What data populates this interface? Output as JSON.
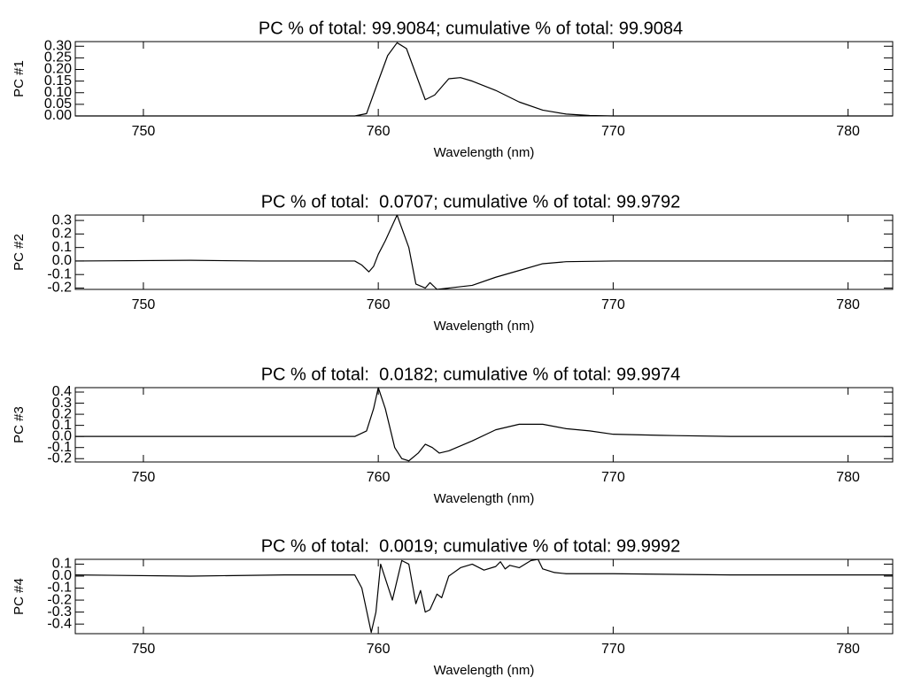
{
  "chart_data": [
    {
      "type": "line",
      "title": "PC % of total: 99.9084; cumulative % of total: 99.9084",
      "ylabel": "PC #1",
      "xlabel": "Wavelength (nm)",
      "color": "#000000",
      "xlim": [
        747.1,
        781.9
      ],
      "xticks": [
        750,
        760,
        770,
        780
      ],
      "ylim": [
        0,
        0.32
      ],
      "yticks": [
        {
          "value": 0,
          "label": "0.00"
        },
        0.05,
        {
          "value": 0.1,
          "label": "0.10"
        },
        0.15,
        {
          "value": 0.2,
          "label": "0.20"
        },
        0.25,
        {
          "value": 0.3,
          "label": "0.30"
        }
      ],
      "x": [
        747.1,
        755,
        759,
        759.5,
        760,
        760.4,
        760.8,
        761.2,
        761.6,
        762,
        762.4,
        763,
        763.5,
        764,
        765,
        766,
        767,
        768,
        769,
        770,
        781.9
      ],
      "values": [
        0,
        0,
        0,
        0.01,
        0.15,
        0.26,
        0.315,
        0.29,
        0.18,
        0.07,
        0.09,
        0.16,
        0.165,
        0.15,
        0.11,
        0.06,
        0.025,
        0.008,
        0.002,
        0,
        0
      ]
    },
    {
      "type": "line",
      "title": "PC % of total:  0.0707; cumulative % of total: 99.9792",
      "ylabel": "PC #2",
      "xlabel": "Wavelength (nm)",
      "color": "#000000",
      "xlim": [
        747.1,
        781.9
      ],
      "xticks": [
        750,
        760,
        770,
        780
      ],
      "ylim": [
        -0.21,
        0.34
      ],
      "yticks": [
        -0.2,
        -0.1,
        {
          "value": 0,
          "label": "0.0"
        },
        0.1,
        0.2,
        0.3
      ],
      "x": [
        747.1,
        752,
        755,
        759,
        759.3,
        759.6,
        759.8,
        760,
        760.3,
        760.8,
        761.3,
        761.6,
        762,
        762.2,
        762.5,
        763,
        764,
        765,
        766,
        767,
        768,
        770,
        781.9
      ],
      "values": [
        0,
        0.005,
        0,
        0,
        -0.03,
        -0.08,
        -0.04,
        0.05,
        0.15,
        0.34,
        0.1,
        -0.17,
        -0.2,
        -0.16,
        -0.21,
        -0.2,
        -0.18,
        -0.12,
        -0.07,
        -0.02,
        -0.005,
        0,
        0
      ]
    },
    {
      "type": "line",
      "title": "PC % of total:  0.0182; cumulative % of total: 99.9974",
      "ylabel": "PC #3",
      "xlabel": "Wavelength (nm)",
      "color": "#000000",
      "xlim": [
        747.1,
        781.9
      ],
      "xticks": [
        750,
        760,
        770,
        780
      ],
      "ylim": [
        -0.23,
        0.44
      ],
      "yticks": [
        -0.2,
        -0.1,
        {
          "value": 0,
          "label": "0.0"
        },
        0.1,
        0.2,
        0.3,
        0.4
      ],
      "x": [
        747.1,
        759,
        759.5,
        759.8,
        760,
        760.3,
        760.7,
        761,
        761.3,
        761.7,
        762,
        762.3,
        762.6,
        763,
        764,
        765,
        766,
        767,
        768,
        769,
        770,
        772,
        775,
        781.9
      ],
      "values": [
        0,
        0,
        0.05,
        0.25,
        0.44,
        0.25,
        -0.1,
        -0.2,
        -0.22,
        -0.15,
        -0.07,
        -0.1,
        -0.15,
        -0.13,
        -0.04,
        0.06,
        0.11,
        0.11,
        0.07,
        0.05,
        0.02,
        0.01,
        0,
        0
      ]
    },
    {
      "type": "line",
      "title": "PC % of total:  0.0019; cumulative % of total: 99.9992",
      "ylabel": "PC #4",
      "xlabel": "Wavelength (nm)",
      "color": "#000000",
      "xlim": [
        747.1,
        781.9
      ],
      "xticks": [
        750,
        760,
        770,
        780
      ],
      "ylim": [
        -0.48,
        0.14
      ],
      "yticks": [
        -0.4,
        -0.3,
        -0.2,
        -0.1,
        {
          "value": 0,
          "label": "0.0"
        },
        0.1
      ],
      "x": [
        747.1,
        752,
        756,
        759,
        759.3,
        759.7,
        759.9,
        760.1,
        760.6,
        761,
        761.3,
        761.6,
        761.8,
        762,
        762.2,
        762.5,
        762.7,
        763,
        763.5,
        764,
        764.5,
        765,
        765.2,
        765.4,
        765.6,
        766,
        766.5,
        766.8,
        767,
        767.5,
        768,
        770,
        775,
        781.9
      ],
      "values": [
        0.01,
        0,
        0.01,
        0.01,
        -0.1,
        -0.47,
        -0.3,
        0.1,
        -0.2,
        0.13,
        0.1,
        -0.23,
        -0.12,
        -0.3,
        -0.28,
        -0.15,
        -0.18,
        0,
        0.07,
        0.1,
        0.05,
        0.08,
        0.12,
        0.06,
        0.09,
        0.07,
        0.13,
        0.14,
        0.06,
        0.03,
        0.02,
        0.02,
        0.01,
        0.01
      ]
    }
  ]
}
